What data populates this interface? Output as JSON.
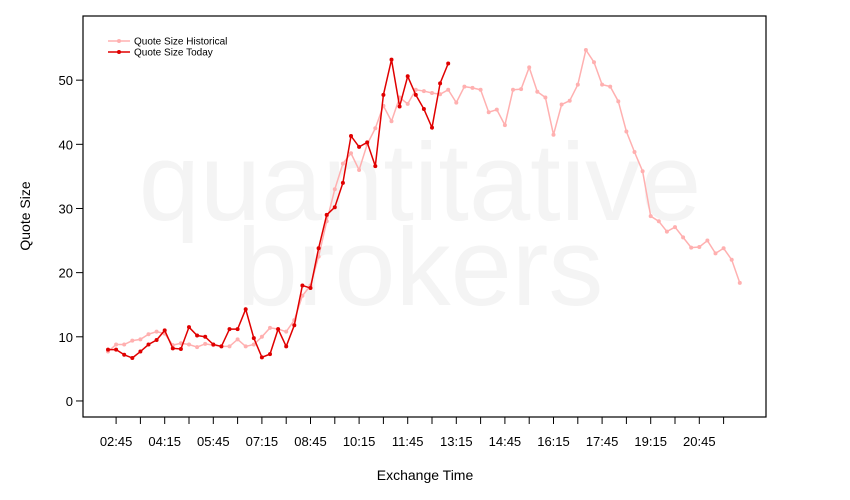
{
  "chart_data": {
    "type": "line",
    "watermark": [
      "quantitative",
      "brokers"
    ],
    "xlabel": "Exchange Time",
    "ylabel": "Quote Size",
    "categories": [
      null,
      "02:45",
      null,
      null,
      null,
      null,
      null,
      "04:15",
      null,
      null,
      null,
      null,
      null,
      "05:45",
      null,
      null,
      null,
      null,
      null,
      "07:15",
      null,
      null,
      null,
      null,
      null,
      "08:45",
      null,
      null,
      null,
      null,
      null,
      "10:15",
      null,
      null,
      null,
      null,
      null,
      "11:45",
      null,
      null,
      null,
      null,
      null,
      "13:15",
      null,
      null,
      null,
      null,
      null,
      "14:45",
      null,
      null,
      null,
      null,
      null,
      "16:15",
      null,
      null,
      null,
      null,
      null,
      "17:45",
      null,
      null,
      null,
      null,
      null,
      "19:15",
      null,
      null,
      null,
      null,
      null,
      "20:45",
      null,
      null,
      null,
      null,
      null
    ],
    "series": [
      {
        "name": "Quote Size Historical",
        "color": "#ffb0b0",
        "values": [
          7.7,
          8.8,
          8.8,
          9.4,
          9.6,
          10.4,
          10.8,
          10.5,
          8.7,
          9.0,
          8.8,
          8.4,
          8.9,
          8.7,
          8.5,
          8.5,
          9.6,
          8.5,
          8.8,
          10,
          11.4,
          11.2,
          10.8,
          12.6,
          16.4,
          18,
          22.5,
          28,
          33,
          37,
          38.6,
          36,
          40,
          42.5,
          46,
          43.6,
          47.3,
          46.3,
          48.5,
          48.3,
          48,
          47.8,
          48.5,
          46.5,
          49,
          48.8,
          48.5,
          45,
          45.4,
          43,
          48.5,
          48.6,
          52,
          48.2,
          47.3,
          41.5,
          46.2,
          46.8,
          49.3,
          54.7,
          52.8,
          49.3,
          49,
          46.7,
          42,
          38.8,
          35.8,
          28.8,
          28,
          26.4,
          27.1,
          25.5,
          23.9,
          24,
          25,
          23,
          23.8,
          22,
          18.4
        ]
      },
      {
        "name": "Quote Size Today",
        "color": "#e00000",
        "values": [
          8,
          8,
          7.2,
          6.7,
          7.7,
          8.8,
          9.5,
          11,
          8.2,
          8.1,
          11.5,
          10.2,
          10,
          8.8,
          8.5,
          11.2,
          11.2,
          14.3,
          9.8,
          6.8,
          7.3,
          11.2,
          8.5,
          11.8,
          18,
          17.6,
          23.8,
          29,
          30.2,
          34,
          41.3,
          39.6,
          40.3,
          36.6,
          47.7,
          53.2,
          45.9,
          50.6,
          47.7,
          45.5,
          42.6,
          49.5,
          52.6,
          null,
          null,
          null,
          null,
          null,
          null,
          null,
          null,
          null,
          null,
          null,
          null,
          null,
          null,
          null,
          null,
          null,
          null,
          null,
          null,
          null,
          null,
          null,
          null,
          null,
          null,
          null,
          null,
          null,
          null,
          null,
          null,
          null,
          null,
          null,
          null
        ]
      }
    ],
    "ylim": [
      -2.5,
      60
    ],
    "yticks": [
      0,
      10,
      20,
      30,
      40,
      50
    ],
    "legend": "upper left"
  }
}
